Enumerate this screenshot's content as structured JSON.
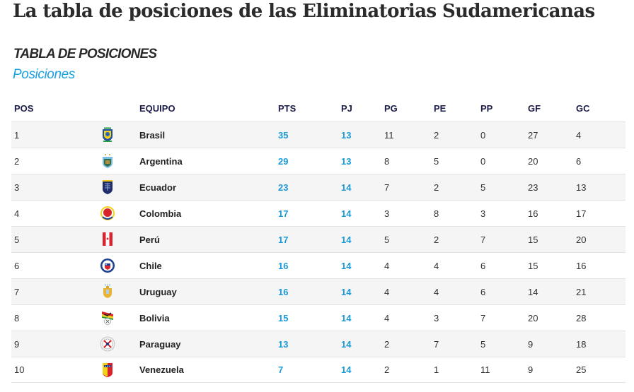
{
  "header": {
    "title": "La tabla de posiciones de las Eliminatorias Sudamericanas"
  },
  "section": {
    "title": "TABLA DE POSICIONES",
    "subtitle": "Posiciones"
  },
  "table": {
    "columns": {
      "pos": "POS",
      "team": "EQUIPO",
      "pts": "PTS",
      "pj": "PJ",
      "pg": "PG",
      "pe": "PE",
      "pp": "PP",
      "gf": "GF",
      "gc": "GC"
    },
    "rows": [
      {
        "pos": "1",
        "team": "Brasil",
        "crest": "brasil-crest-icon",
        "pts": "35",
        "pj": "13",
        "pg": "11",
        "pe": "2",
        "pp": "0",
        "gf": "27",
        "gc": "4"
      },
      {
        "pos": "2",
        "team": "Argentina",
        "crest": "argentina-crest-icon",
        "pts": "29",
        "pj": "13",
        "pg": "8",
        "pe": "5",
        "pp": "0",
        "gf": "20",
        "gc": "6"
      },
      {
        "pos": "3",
        "team": "Ecuador",
        "crest": "ecuador-crest-icon",
        "pts": "23",
        "pj": "14",
        "pg": "7",
        "pe": "2",
        "pp": "5",
        "gf": "23",
        "gc": "13"
      },
      {
        "pos": "4",
        "team": "Colombia",
        "crest": "colombia-crest-icon",
        "pts": "17",
        "pj": "14",
        "pg": "3",
        "pe": "8",
        "pp": "3",
        "gf": "16",
        "gc": "17"
      },
      {
        "pos": "5",
        "team": "Perú",
        "crest": "peru-crest-icon",
        "pts": "17",
        "pj": "14",
        "pg": "5",
        "pe": "2",
        "pp": "7",
        "gf": "15",
        "gc": "20"
      },
      {
        "pos": "6",
        "team": "Chile",
        "crest": "chile-crest-icon",
        "pts": "16",
        "pj": "14",
        "pg": "4",
        "pe": "4",
        "pp": "6",
        "gf": "15",
        "gc": "16"
      },
      {
        "pos": "7",
        "team": "Uruguay",
        "crest": "uruguay-crest-icon",
        "pts": "16",
        "pj": "14",
        "pg": "4",
        "pe": "4",
        "pp": "6",
        "gf": "14",
        "gc": "21"
      },
      {
        "pos": "8",
        "team": "Bolivia",
        "crest": "bolivia-crest-icon",
        "pts": "15",
        "pj": "14",
        "pg": "4",
        "pe": "3",
        "pp": "7",
        "gf": "20",
        "gc": "28"
      },
      {
        "pos": "9",
        "team": "Paraguay",
        "crest": "paraguay-crest-icon",
        "pts": "13",
        "pj": "14",
        "pg": "2",
        "pe": "7",
        "pp": "5",
        "gf": "9",
        "gc": "18"
      },
      {
        "pos": "10",
        "team": "Venezuela",
        "crest": "venezuela-crest-icon",
        "pts": "7",
        "pj": "14",
        "pg": "2",
        "pe": "1",
        "pp": "11",
        "gf": "9",
        "gc": "25"
      }
    ]
  },
  "colors": {
    "accent": "#1a9ad9",
    "header_text": "#1c1c4a",
    "stripe": "#f5f5f5"
  }
}
